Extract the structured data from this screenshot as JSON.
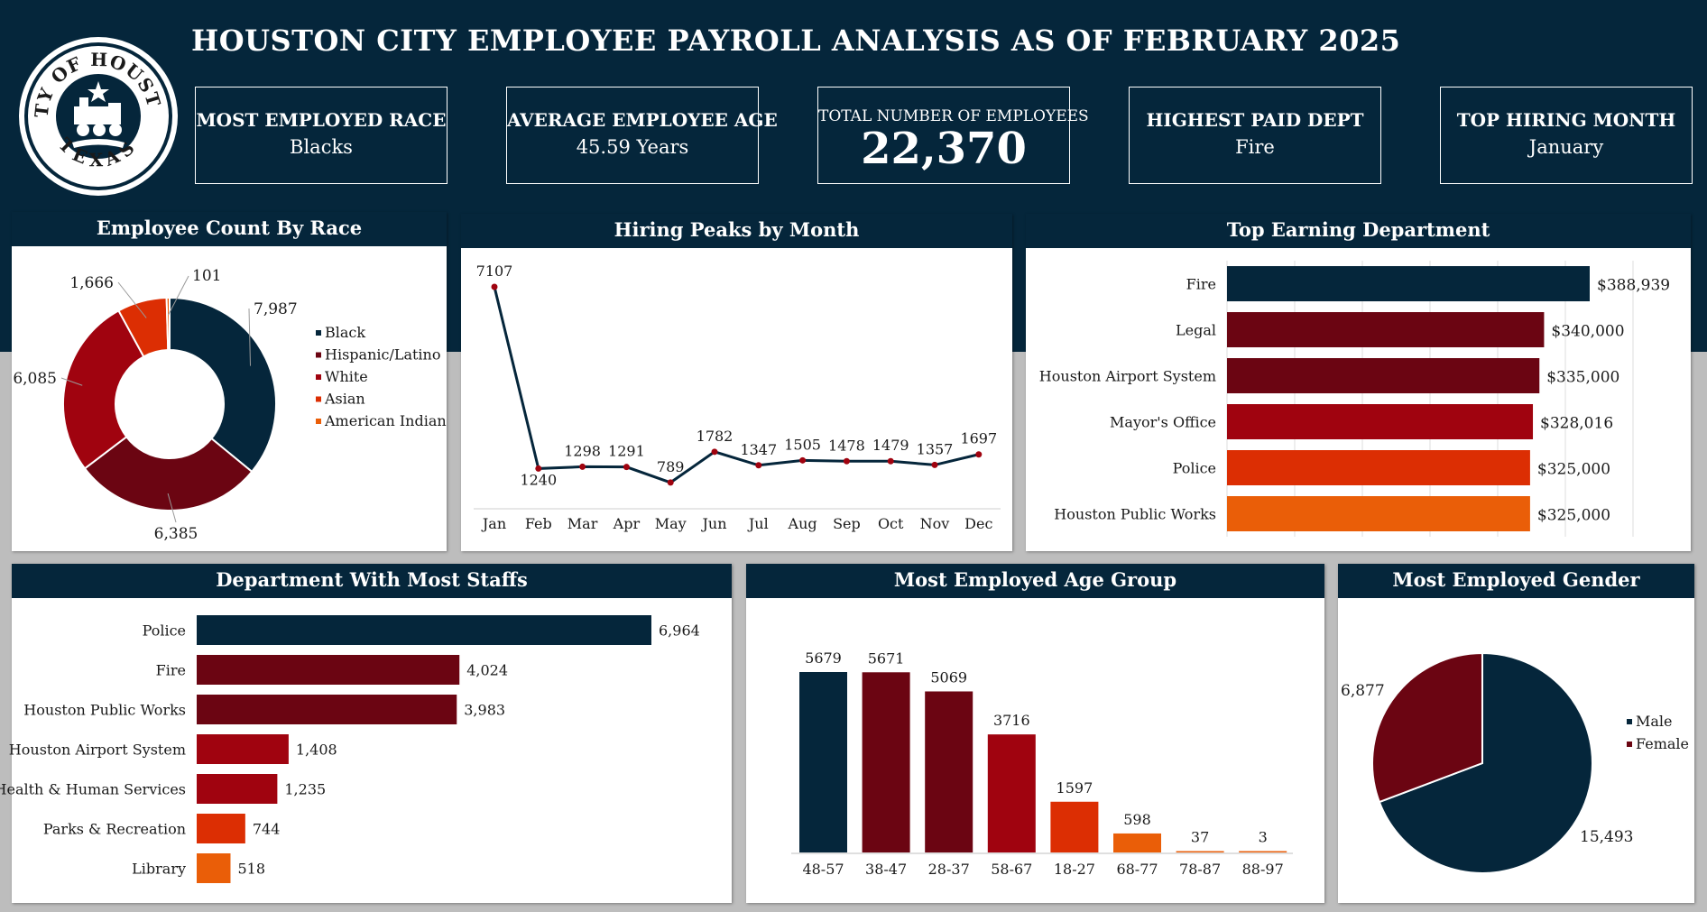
{
  "header": {
    "title": "HOUSTON CITY EMPLOYEE PAYROLL ANALYSIS AS OF FEBRUARY 2025",
    "seal_text_top": "CITY OF HOUSTON",
    "seal_text_bottom": "TEXAS"
  },
  "kpis": [
    {
      "label": "MOST EMPLOYED RACE",
      "value": "Blacks"
    },
    {
      "label": "AVERAGE EMPLOYEE AGE",
      "value": "45.59 Years"
    },
    {
      "label": "TOTAL NUMBER OF EMPLOYEES",
      "value": "22,370"
    },
    {
      "label": "HIGHEST PAID DEPT",
      "value": "Fire"
    },
    {
      "label": "TOP HIRING MONTH",
      "value": "January"
    }
  ],
  "colors": {
    "navy": "#05263b",
    "maroon": "#6b0512",
    "red": "#a0030f",
    "orange_red": "#dc2e03",
    "orange": "#ea5e08"
  },
  "chart_data": [
    {
      "id": "race",
      "type": "pie",
      "variant": "donut",
      "title": "Employee Count By Race",
      "categories": [
        "Black",
        "Hispanic/Latino",
        "White",
        "Asian",
        "American Indian"
      ],
      "values": [
        7987,
        6385,
        6085,
        1666,
        101
      ],
      "value_labels": [
        "7,987",
        "6,385",
        "6,085",
        "1,666",
        "101"
      ],
      "colors": [
        "#05263b",
        "#6b0512",
        "#a0030f",
        "#dc2e03",
        "#ea5e08"
      ],
      "legend": "right"
    },
    {
      "id": "hiring",
      "type": "line",
      "title": "Hiring Peaks by Month",
      "categories": [
        "Jan",
        "Feb",
        "Mar",
        "Apr",
        "May",
        "Jun",
        "Jul",
        "Aug",
        "Sep",
        "Oct",
        "Nov",
        "Dec"
      ],
      "values": [
        7107,
        1240,
        1298,
        1291,
        789,
        1782,
        1347,
        1505,
        1478,
        1479,
        1357,
        1697
      ],
      "ylim": [
        0,
        7500
      ]
    },
    {
      "id": "earning",
      "type": "bar",
      "orientation": "horizontal",
      "title": "Top Earning Department",
      "categories": [
        "Fire",
        "Legal",
        "Houston Airport System",
        "Mayor's Office",
        "Police",
        "Houston Public Works"
      ],
      "values": [
        388939,
        340000,
        335000,
        328016,
        325000,
        325000
      ],
      "value_labels": [
        "$388,939",
        "$340,000",
        "$335,000",
        "$328,016",
        "$325,000",
        "$325,000"
      ],
      "colors": [
        "#05263b",
        "#6b0512",
        "#6b0512",
        "#a0030f",
        "#dc2e03",
        "#ea5e08"
      ],
      "xlim": [
        0,
        450000
      ],
      "grid": true
    },
    {
      "id": "staff",
      "type": "bar",
      "orientation": "horizontal",
      "title": "Department With Most Staffs",
      "categories": [
        "Police",
        "Fire",
        "Houston Public Works",
        "Houston Airport System",
        "Health & Human Services",
        "Parks & Recreation",
        "Library"
      ],
      "values": [
        6964,
        4024,
        3983,
        1408,
        1235,
        744,
        518
      ],
      "value_labels": [
        "6,964",
        "4,024",
        "3,983",
        "1,408",
        "1,235",
        "744",
        "518"
      ],
      "colors": [
        "#05263b",
        "#6b0512",
        "#6b0512",
        "#a0030f",
        "#a0030f",
        "#dc2e03",
        "#ea5e08"
      ],
      "xlim": [
        0,
        7000
      ]
    },
    {
      "id": "age",
      "type": "bar",
      "title": "Most Employed Age Group",
      "categories": [
        "48-57",
        "38-47",
        "28-37",
        "58-67",
        "18-27",
        "68-77",
        "78-87",
        "88-97"
      ],
      "values": [
        5679,
        5671,
        5069,
        3716,
        1597,
        598,
        37,
        3
      ],
      "colors": [
        "#05263b",
        "#6b0512",
        "#6b0512",
        "#a0030f",
        "#dc2e03",
        "#ea5e08",
        "#ea5e08",
        "#ea5e08"
      ],
      "ylim": [
        0,
        6000
      ]
    },
    {
      "id": "gender",
      "type": "pie",
      "title": "Most Employed Gender",
      "categories": [
        "Male",
        "Female"
      ],
      "values": [
        15493,
        6877
      ],
      "value_labels": [
        "15,493",
        "6,877"
      ],
      "colors": [
        "#05263b",
        "#6b0512"
      ],
      "legend": "right"
    }
  ]
}
